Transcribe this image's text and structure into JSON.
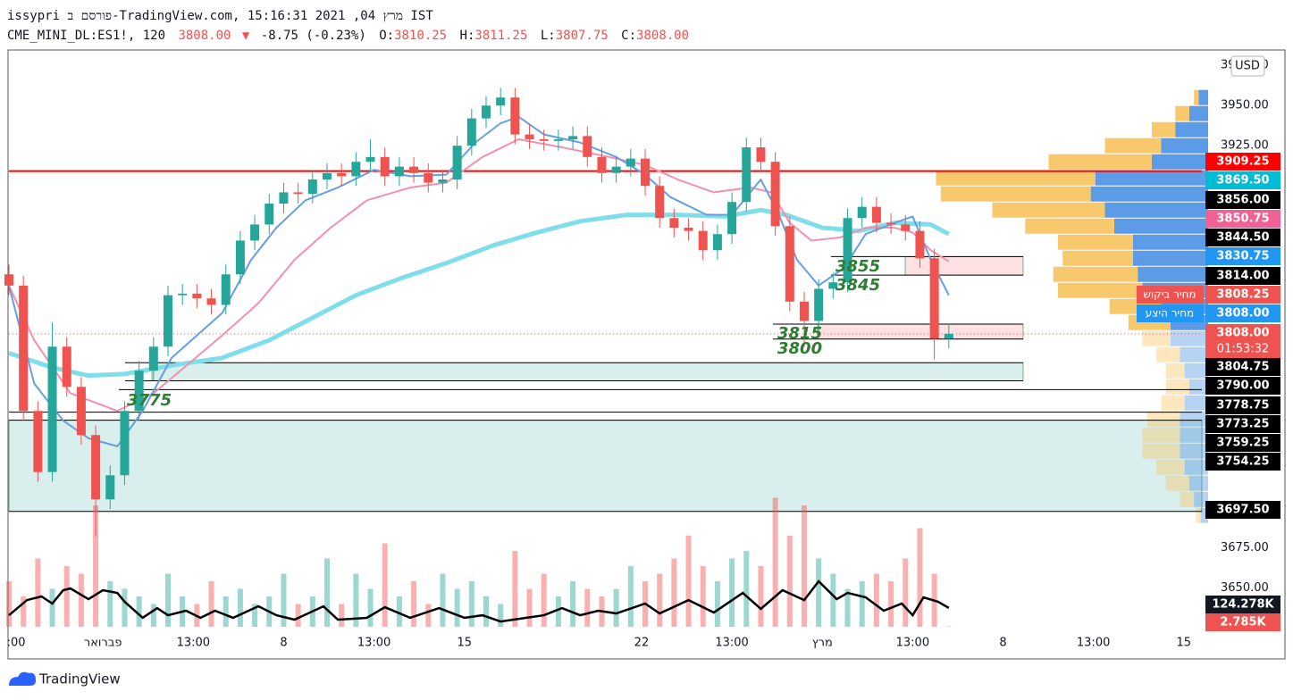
{
  "header": {
    "title": "issypri פורסם ב-TradingView.com, מרץ 04, 2021 15:16:31 IST",
    "symbol": "CME_MINI_DL:ES1!, 120",
    "last": "3808.00",
    "arrow": "▼",
    "change": "-8.75 (-0.23%)",
    "ohlc": [
      {
        "label": "O:",
        "value": "3810.25"
      },
      {
        "label": "H:",
        "value": "3811.25"
      },
      {
        "label": "L:",
        "value": "3807.75"
      },
      {
        "label": "C:",
        "value": "3808.00"
      }
    ]
  },
  "chart_data": {
    "type": "candlestick",
    "x": [
      0,
      4,
      8,
      12,
      16,
      20,
      24,
      28,
      32,
      36,
      40,
      44,
      48,
      52,
      56,
      60,
      64,
      68,
      72,
      76,
      80,
      84,
      88,
      92,
      96,
      100,
      104,
      108,
      112,
      116,
      120,
      124,
      128,
      132,
      136,
      140,
      144,
      148,
      152,
      156,
      160,
      164,
      168,
      172,
      176,
      180,
      184,
      188,
      192,
      196,
      200,
      204,
      208,
      212,
      216,
      220,
      224,
      228,
      232,
      236,
      240,
      244,
      248,
      252,
      256,
      260
    ],
    "open": [
      3845,
      3838,
      3760,
      3722,
      3800,
      3775,
      3745,
      3705,
      3720,
      3760,
      3785,
      3800,
      3832,
      3833,
      3830,
      3826,
      3845,
      3866,
      3876,
      3889,
      3896,
      3895,
      3904,
      3908,
      3906,
      3915,
      3918,
      3906,
      3912,
      3908,
      3902,
      3904,
      3925,
      3942,
      3950,
      3955,
      3932,
      3929,
      3928,
      3929,
      3931,
      3918,
      3908,
      3912,
      3917,
      3900,
      3880,
      3874,
      3872,
      3860,
      3870,
      3890,
      3924,
      3915,
      3875,
      3828,
      3816,
      3836,
      3840,
      3880,
      3887,
      3877,
      3876,
      3872,
      3855,
      3805
    ],
    "high": [
      3851,
      3844,
      3766,
      3815,
      3806,
      3781,
      3751,
      3726,
      3766,
      3791,
      3806,
      3838,
      3839,
      3839,
      3836,
      3851,
      3872,
      3882,
      3895,
      3902,
      3902,
      3910,
      3914,
      3914,
      3921,
      3929,
      3924,
      3918,
      3918,
      3914,
      3910,
      3931,
      3948,
      3956,
      3961,
      3961,
      3938,
      3935,
      3935,
      3937,
      3937,
      3924,
      3918,
      3923,
      3923,
      3906,
      3886,
      3880,
      3878,
      3876,
      3896,
      3930,
      3930,
      3921,
      3881,
      3834,
      3842,
      3846,
      3886,
      3893,
      3893,
      3883,
      3882,
      3878,
      3861,
      3814
    ],
    "low": [
      3832,
      3754,
      3716,
      3716,
      3769,
      3739,
      3682,
      3699,
      3714,
      3754,
      3779,
      3794,
      3826,
      3824,
      3820,
      3820,
      3839,
      3860,
      3870,
      3883,
      3889,
      3889,
      3898,
      3900,
      3900,
      3909,
      3900,
      3900,
      3902,
      3896,
      3896,
      3898,
      3919,
      3936,
      3944,
      3926,
      3923,
      3922,
      3922,
      3923,
      3912,
      3902,
      3902,
      3906,
      3894,
      3874,
      3868,
      3866,
      3854,
      3854,
      3864,
      3884,
      3909,
      3869,
      3822,
      3800,
      3810,
      3830,
      3834,
      3874,
      3871,
      3870,
      3866,
      3849,
      3792,
      3799
    ],
    "close": [
      3838,
      3760,
      3722,
      3800,
      3775,
      3745,
      3705,
      3720,
      3760,
      3785,
      3800,
      3832,
      3833,
      3830,
      3826,
      3845,
      3866,
      3876,
      3889,
      3896,
      3895,
      3904,
      3908,
      3906,
      3915,
      3918,
      3906,
      3912,
      3908,
      3902,
      3904,
      3925,
      3942,
      3950,
      3955,
      3932,
      3929,
      3928,
      3929,
      3931,
      3918,
      3908,
      3912,
      3917,
      3900,
      3880,
      3874,
      3872,
      3860,
      3870,
      3890,
      3924,
      3915,
      3875,
      3828,
      3816,
      3836,
      3840,
      3880,
      3887,
      3877,
      3876,
      3872,
      3855,
      3805,
      3808
    ],
    "up_color": "#26a69a",
    "down_color": "#ef5350",
    "xlim": [
      0,
      330
    ],
    "ylim": [
      3623.5,
      3984
    ],
    "xticks": [
      {
        "value": 2,
        "label": ":00"
      },
      {
        "value": 26,
        "label": "פברואר"
      },
      {
        "value": 51,
        "label": "13:00"
      },
      {
        "value": 76,
        "label": "8"
      },
      {
        "value": 101,
        "label": "13:00"
      },
      {
        "value": 126,
        "label": "15"
      },
      {
        "value": 175,
        "label": "22"
      },
      {
        "value": 200,
        "label": "13:00"
      },
      {
        "value": 225,
        "label": "מרץ"
      },
      {
        "value": 250,
        "label": "13:00"
      },
      {
        "value": 275,
        "label": "8"
      },
      {
        "value": 300,
        "label": "13:00"
      },
      {
        "value": 325,
        "label": "15"
      }
    ],
    "yticks": [
      {
        "value": 3975,
        "label": "3975.00"
      },
      {
        "value": 3950,
        "label": "3950.00"
      },
      {
        "value": 3925,
        "label": "3925.00"
      },
      {
        "value": 3675,
        "label": "3675.00"
      },
      {
        "value": 3650,
        "label": "3650.00"
      }
    ],
    "currency": "USD",
    "moving_averages": [
      {
        "color": "#80deea",
        "width": 5,
        "x": [
          0,
          12,
          22,
          32,
          47,
          59,
          72,
          84,
          96,
          109,
          121,
          134,
          146,
          158,
          171,
          185,
          198,
          208,
          215,
          225,
          235,
          245,
          255,
          260
        ],
        "values": [
          3796,
          3787,
          3782,
          3783,
          3789,
          3793,
          3804,
          3818,
          3832,
          3843,
          3852,
          3863,
          3871,
          3878,
          3882,
          3882,
          3881,
          3885,
          3882,
          3874,
          3872,
          3877,
          3876,
          3870
        ]
      },
      {
        "color": "#f48fb1",
        "width": 2,
        "x": [
          0,
          7,
          17,
          30,
          40,
          49,
          59,
          69,
          79,
          89,
          99,
          111,
          121,
          131,
          141,
          153,
          166,
          176,
          185,
          195,
          205,
          211,
          216,
          222,
          230,
          237,
          245,
          250,
          255,
          260
        ],
        "values": [
          3838,
          3804,
          3771,
          3760,
          3771,
          3788,
          3807,
          3827,
          3854,
          3874,
          3891,
          3899,
          3902,
          3918,
          3929,
          3924,
          3918,
          3913,
          3904,
          3896,
          3899,
          3896,
          3877,
          3866,
          3868,
          3874,
          3874,
          3871,
          3860,
          3853
        ]
      },
      {
        "color": "#64a0e0",
        "width": 2,
        "x": [
          0,
          7,
          15,
          22,
          30,
          37,
          45,
          52,
          59,
          67,
          74,
          82,
          91,
          101,
          111,
          121,
          129,
          136,
          141,
          148,
          158,
          168,
          176,
          183,
          193,
          200,
          208,
          213,
          218,
          224,
          231,
          237,
          245,
          250,
          255,
          260
        ],
        "values": [
          3838,
          3777,
          3754,
          3743,
          3738,
          3760,
          3793,
          3807,
          3821,
          3854,
          3874,
          3891,
          3899,
          3910,
          3906,
          3907,
          3927,
          3939,
          3943,
          3932,
          3927,
          3918,
          3907,
          3893,
          3882,
          3882,
          3904,
          3882,
          3854,
          3838,
          3849,
          3870,
          3877,
          3881,
          3854,
          3832
        ]
      }
    ],
    "levels": [
      {
        "value": 3909.25,
        "color": "#ff0000"
      },
      {
        "value": 3856,
        "color": "#000000"
      },
      {
        "value": 3844.5,
        "color": "#000000"
      },
      {
        "value": 3814,
        "color": "#000000"
      },
      {
        "value": 3804.75,
        "color": "#000000"
      },
      {
        "value": 3790,
        "color": "#000000"
      },
      {
        "value": 3778.75,
        "color": "#000000"
      },
      {
        "value": 3773.25,
        "color": "#000000"
      },
      {
        "value": 3759.25,
        "color": "#000000"
      },
      {
        "value": 3754.25,
        "color": "#000000"
      },
      {
        "value": 3697.5,
        "color": "#000000"
      }
    ],
    "price_labels": [
      {
        "value": 3909.25,
        "label": "3909.25",
        "color": "#ff0000"
      },
      {
        "value": 3869.5,
        "label": "3869.50",
        "color": "#00bcd4"
      },
      {
        "value": 3856,
        "label": "3856.00",
        "color": "#000000"
      },
      {
        "value": 3850.75,
        "label": "3850.75",
        "color": "#f06292"
      },
      {
        "value": 3844.5,
        "label": "3844.50",
        "color": "#000000"
      },
      {
        "value": 3830.75,
        "label": "3830.75",
        "color": "#2196f3"
      },
      {
        "value": 3814,
        "label": "3814.00",
        "color": "#000000"
      },
      {
        "value": 3808.25,
        "label": "3808.25",
        "color": "#ef5350",
        "name": "מחיר ביקוש"
      },
      {
        "value": 3808,
        "label": "3808.00",
        "color": "#2196f3",
        "name": "מחיר היצע"
      },
      {
        "value": 3808,
        "label": "3808.00",
        "color": "#ef5350",
        "countdown": "01:53:32"
      },
      {
        "value": 3804.75,
        "label": "3804.75",
        "color": "#000000"
      },
      {
        "value": 3790,
        "label": "3790.00",
        "color": "#000000"
      },
      {
        "value": 3778.75,
        "label": "3778.75",
        "color": "#000000"
      },
      {
        "value": 3773.25,
        "label": "3773.25",
        "color": "#000000"
      },
      {
        "value": 3759.25,
        "label": "3759.25",
        "color": "#000000"
      },
      {
        "value": 3754.25,
        "label": "3754.25",
        "color": "#000000"
      },
      {
        "value": 3697.5,
        "label": "3697.50",
        "color": "#000000"
      }
    ],
    "annotations": [
      "3855",
      "3845",
      "3815",
      "3800",
      "3775"
    ],
    "volume": {
      "ylim": [
        0,
        1000
      ],
      "values": [
        300,
        200,
        450,
        250,
        400,
        350,
        800,
        300,
        250,
        200,
        150,
        350,
        200,
        150,
        300,
        200,
        250,
        150,
        200,
        350,
        150,
        200,
        450,
        150,
        350,
        250,
        550,
        200,
        300,
        150,
        350,
        250,
        300,
        200,
        150,
        500,
        250,
        350,
        200,
        300,
        250,
        200,
        250,
        400,
        300,
        350,
        450,
        600,
        400,
        300,
        450,
        500,
        400,
        850,
        600,
        800,
        450,
        350,
        250,
        300,
        350,
        300,
        450,
        650,
        350,
        2.785
      ],
      "ma": {
        "color": "#000000",
        "x": [
          0,
          5,
          9,
          12,
          15,
          17,
          22,
          26,
          30,
          32,
          37,
          41,
          44,
          49,
          53,
          57,
          62,
          69,
          74,
          79,
          87,
          91,
          99,
          104,
          111,
          119,
          126,
          131,
          136,
          143,
          148,
          153,
          158,
          163,
          168,
          176,
          180,
          188,
          195,
          203,
          208,
          214,
          220,
          224,
          229,
          232,
          237,
          242,
          247,
          250,
          253,
          257,
          260
        ],
        "values": [
          76,
          176,
          200,
          153,
          241,
          253,
          182,
          241,
          223,
          165,
          59,
          123,
          76,
          106,
          59,
          106,
          59,
          135,
          76,
          47,
          135,
          47,
          59,
          129,
          59,
          123,
          59,
          76,
          35,
          59,
          76,
          123,
          76,
          106,
          88,
          153,
          88,
          176,
          94,
          223,
          118,
          241,
          176,
          300,
          182,
          223,
          194,
          106,
          153,
          76,
          194,
          165,
          124.278
        ]
      },
      "labels": [
        {
          "value": 124.278,
          "label": "124.278K",
          "color": "#131722"
        },
        {
          "value": 2.785,
          "label": "2.785K",
          "color": "#ef5350"
        }
      ]
    },
    "volume_profile": {
      "up_color": "#f7c25c",
      "down_color": "#4a90e2",
      "price": [
        3955,
        3945,
        3935,
        3925,
        3915,
        3905,
        3895,
        3885,
        3875,
        3865,
        3855,
        3845,
        3835,
        3825,
        3815,
        3805,
        3795,
        3785,
        3775,
        3765,
        3755,
        3745,
        3735,
        3725,
        3715,
        3705,
        3695
      ],
      "up": [
        5,
        15,
        25,
        60,
        110,
        170,
        160,
        120,
        95,
        80,
        75,
        90,
        90,
        55,
        45,
        30,
        25,
        20,
        25,
        25,
        35,
        40,
        40,
        30,
        25,
        15,
        5
      ],
      "down": [
        10,
        20,
        35,
        50,
        60,
        120,
        125,
        110,
        100,
        80,
        80,
        75,
        70,
        50,
        40,
        40,
        30,
        25,
        20,
        25,
        30,
        30,
        30,
        25,
        20,
        15,
        8
      ]
    }
  },
  "footer": {
    "brand": "TradingView"
  }
}
